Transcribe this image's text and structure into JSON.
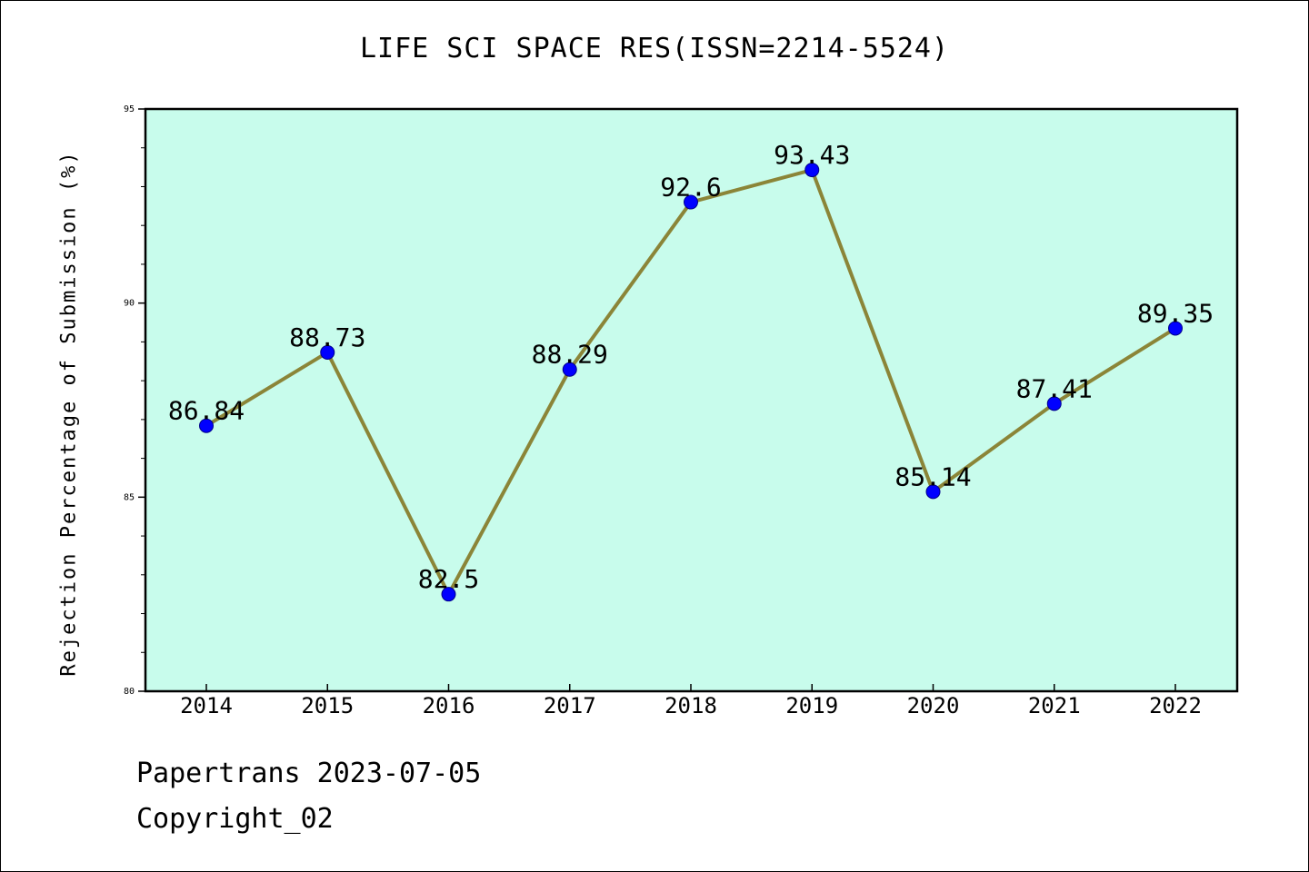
{
  "chart_data": {
    "type": "line",
    "title": "LIFE SCI SPACE RES(ISSN=2214-5524)",
    "xlabel": "",
    "ylabel": "Rejection Percentage of Submission (%)",
    "categories": [
      "2014",
      "2015",
      "2016",
      "2017",
      "2018",
      "2019",
      "2020",
      "2021",
      "2022"
    ],
    "series": [
      {
        "values": [
          86.84,
          88.73,
          82.5,
          88.29,
          92.6,
          93.43,
          85.14,
          87.41,
          89.35
        ]
      }
    ],
    "data_labels": [
      "86.84",
      "88.73",
      "82.5",
      "88.29",
      "92.6",
      "93.43",
      "85.14",
      "87.41",
      "89.35"
    ],
    "ylim": [
      80,
      95
    ],
    "yticks": [
      "80",
      "85",
      "90",
      "95"
    ],
    "grid": false,
    "legend": "none",
    "colors": {
      "plot_background": "#c8fcec",
      "line": "#8b8538",
      "marker": "#0000ff"
    }
  },
  "footer": {
    "line1": "Papertrans 2023-07-05",
    "line2": "Copyright_02"
  }
}
